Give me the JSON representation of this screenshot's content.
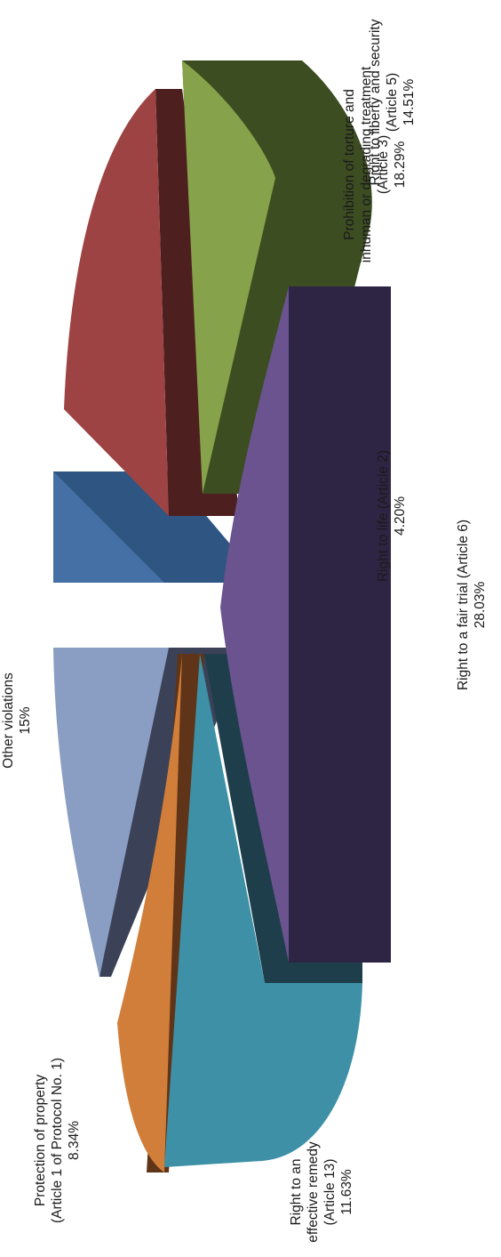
{
  "chart_data": {
    "type": "pie",
    "title": "",
    "slices": [
      {
        "label": [
          "Right to life (Article 2)"
        ],
        "pct": "4.20%",
        "value": 4.2,
        "colors": {
          "top": "#4470a6",
          "side": "#2f5682"
        }
      },
      {
        "label": [
          "Prohibition of torture and",
          "inhuman or degrading treatment",
          "(Article 3)"
        ],
        "pct": "18.29%",
        "value": 18.29,
        "colors": {
          "top": "#9e4343",
          "side": "#4d1f1f"
        }
      },
      {
        "label": [
          "Right to liberty and security",
          "(Article 5)"
        ],
        "pct": "14.51%",
        "value": 14.51,
        "colors": {
          "top": "#86a24a",
          "side": "#3c4d22"
        }
      },
      {
        "label": [
          "Right to a fair trial (Article 6)"
        ],
        "pct": "28.03%",
        "value": 28.03,
        "colors": {
          "top": "#6b5390",
          "side": "#2e2544"
        }
      },
      {
        "label": [
          "Right to an",
          "effective remedy",
          "(Article 13)"
        ],
        "pct": "11.63%",
        "value": 11.63,
        "colors": {
          "top": "#3d90a6",
          "side": "#1e3e4b"
        }
      },
      {
        "label": [
          "Protection of property",
          "(Article 1 of Protocol No. 1)"
        ],
        "pct": "8.34%",
        "value": 8.34,
        "colors": {
          "top": "#d07e3a",
          "side": "#5f3418"
        }
      },
      {
        "label": [
          "Other violations"
        ],
        "pct": "15%",
        "value": 15,
        "colors": {
          "top": "#8a9dc2",
          "side": "#3b4258"
        }
      }
    ],
    "legend": "none",
    "orientation": "rotated-90-ccw"
  }
}
